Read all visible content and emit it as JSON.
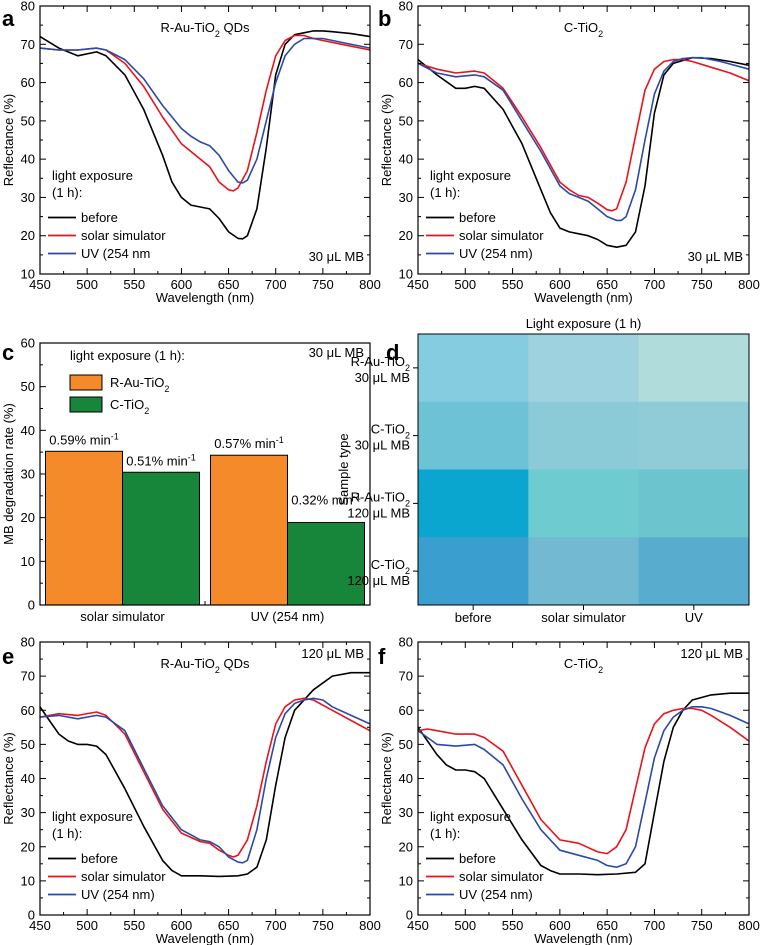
{
  "figure": {
    "panel_letters": [
      "a",
      "b",
      "c",
      "d",
      "e",
      "f"
    ],
    "micro_symbol": "μ"
  },
  "colors": {
    "before": "#000000",
    "solar": "#e8141c",
    "uv": "#2a4aa8",
    "bar_r_au": "#f58a2a",
    "bar_c_tio2": "#17863a",
    "heat": [
      [
        "#86cce0",
        "#9dd2de",
        "#b0dcdc"
      ],
      [
        "#6ec2d6",
        "#8bcbd8",
        "#8fccd8"
      ],
      [
        "#0aa6d0",
        "#6ecbcf",
        "#6cc4cf"
      ],
      [
        "#3a9fcf",
        "#72b9d1",
        "#58acce"
      ]
    ]
  },
  "chart_data": [
    {
      "panel": "a",
      "type": "line",
      "title": "R-Au-TiO2 QDs",
      "title_parts": {
        "main": "R-Au-TiO",
        "sub": "2",
        "rest": " QDs"
      },
      "annotation": "30 μL MB",
      "xlabel": "Wavelength (nm)",
      "ylabel": "Reflectance (%)",
      "xlim": [
        450,
        800
      ],
      "ylim": [
        10,
        80
      ],
      "xticks": [
        450,
        500,
        550,
        600,
        650,
        700,
        750,
        800
      ],
      "yticks": [
        10,
        20,
        30,
        40,
        50,
        60,
        70,
        80
      ],
      "legend_title": [
        "light exposure",
        "(1 h):"
      ],
      "legend_items": [
        "before",
        "solar simulator",
        "UV (254 nm"
      ],
      "series": [
        {
          "name": "before",
          "color_key": "before",
          "x": [
            450,
            470,
            490,
            510,
            520,
            540,
            560,
            580,
            590,
            600,
            610,
            620,
            630,
            640,
            650,
            660,
            665,
            670,
            680,
            690,
            700,
            710,
            720,
            730,
            740,
            750,
            760,
            780,
            800
          ],
          "y": [
            72,
            69,
            67,
            68,
            67,
            62,
            53,
            41,
            34,
            30,
            28,
            27.5,
            27,
            24.5,
            21,
            19.3,
            19.2,
            20,
            27,
            43,
            62,
            70,
            72.5,
            73,
            73.5,
            73.5,
            73.3,
            72.8,
            72
          ]
        },
        {
          "name": "solar simulator",
          "color_key": "solar",
          "x": [
            450,
            470,
            490,
            510,
            520,
            540,
            560,
            580,
            600,
            610,
            620,
            630,
            640,
            650,
            655,
            660,
            670,
            680,
            690,
            700,
            710,
            720,
            730,
            740,
            750,
            770,
            800
          ],
          "y": [
            69,
            68.5,
            68.5,
            69,
            68.5,
            65,
            59,
            51,
            44,
            42,
            40,
            38,
            34,
            32,
            31.7,
            32.5,
            37,
            47,
            58,
            67,
            71,
            72.3,
            72.3,
            71.5,
            71,
            70,
            68.5
          ]
        },
        {
          "name": "UV (254 nm",
          "color_key": "uv",
          "x": [
            450,
            470,
            490,
            510,
            520,
            540,
            560,
            580,
            600,
            610,
            620,
            630,
            640,
            650,
            660,
            665,
            670,
            680,
            690,
            700,
            710,
            720,
            730,
            740,
            750,
            770,
            800
          ],
          "y": [
            69,
            68.5,
            68.5,
            69,
            68.5,
            66,
            61,
            54,
            48,
            46,
            44.5,
            43.5,
            41,
            37,
            34,
            33.8,
            34.5,
            40,
            50,
            60,
            67,
            70,
            71.5,
            71.5,
            71.5,
            70.5,
            69
          ]
        }
      ]
    },
    {
      "panel": "b",
      "type": "line",
      "title": "C-TiO2",
      "title_parts": {
        "main": "C-TiO",
        "sub": "2",
        "rest": ""
      },
      "annotation": "30 μL MB",
      "xlabel": "Wavelength (nm)",
      "ylabel": "Reflectance (%)",
      "xlim": [
        450,
        800
      ],
      "ylim": [
        10,
        80
      ],
      "xticks": [
        450,
        500,
        550,
        600,
        650,
        700,
        750,
        800
      ],
      "yticks": [
        10,
        20,
        30,
        40,
        50,
        60,
        70,
        80
      ],
      "legend_title": [
        "light exposure",
        "(1 h):"
      ],
      "legend_items": [
        "before",
        "solar simulator",
        "UV (254 nm)"
      ],
      "series": [
        {
          "name": "before",
          "color_key": "before",
          "x": [
            450,
            460,
            470,
            490,
            500,
            510,
            520,
            540,
            560,
            580,
            590,
            600,
            610,
            620,
            630,
            640,
            650,
            660,
            670,
            680,
            690,
            700,
            710,
            720,
            740,
            760,
            780,
            800
          ],
          "y": [
            66,
            64,
            62,
            58.5,
            58.5,
            59,
            58.5,
            53,
            44,
            32,
            26,
            22,
            21,
            20.5,
            20,
            19,
            17.5,
            17,
            17.5,
            21,
            33,
            52,
            62,
            65,
            66.5,
            66.3,
            65.5,
            64.5
          ]
        },
        {
          "name": "solar simulator",
          "color_key": "solar",
          "x": [
            450,
            470,
            490,
            510,
            520,
            540,
            560,
            580,
            600,
            610,
            620,
            630,
            640,
            650,
            655,
            660,
            670,
            680,
            690,
            700,
            710,
            720,
            730,
            740,
            760,
            780,
            800
          ],
          "y": [
            65,
            63.5,
            62.5,
            63,
            62.5,
            58.5,
            51,
            43,
            34,
            32,
            30.5,
            30,
            28.5,
            26.8,
            26.5,
            27,
            34,
            46,
            58,
            63.5,
            65.5,
            66,
            66,
            65.5,
            64,
            62.5,
            60.5
          ]
        },
        {
          "name": "UV (254 nm)",
          "color_key": "uv",
          "x": [
            450,
            470,
            490,
            510,
            520,
            540,
            560,
            580,
            600,
            610,
            620,
            630,
            640,
            650,
            660,
            665,
            670,
            680,
            690,
            700,
            710,
            720,
            730,
            740,
            750,
            770,
            800
          ],
          "y": [
            65,
            62.5,
            61.5,
            62,
            61.5,
            58,
            50,
            42,
            33,
            31,
            30,
            29,
            27,
            25,
            24,
            24,
            25,
            32,
            45,
            57,
            63,
            65.5,
            66.3,
            66.5,
            66.5,
            65.5,
            63.5
          ]
        }
      ]
    },
    {
      "panel": "c",
      "type": "bar",
      "title": "light exposure (1 h):",
      "annotation": "30 μL MB",
      "xlabel": "",
      "ylabel": "MB degradation rate (%)",
      "ylim": [
        0,
        60
      ],
      "yticks": [
        0,
        10,
        20,
        30,
        40,
        50,
        60
      ],
      "categories": [
        "solar simulator",
        "UV (254 nm)"
      ],
      "legend_items": [
        {
          "main": "R-Au-TiO",
          "sub": "2"
        },
        {
          "main": "C-TiO",
          "sub": "2"
        }
      ],
      "series": [
        {
          "name": "R-Au-TiO2",
          "color_key": "bar_r_au",
          "values": [
            35.2,
            34.3
          ],
          "labels": [
            "0.59% min",
            "0.57% min"
          ]
        },
        {
          "name": "C-TiO2",
          "color_key": "bar_c_tio2",
          "values": [
            30.4,
            18.9
          ],
          "labels": [
            "0.51% min",
            "0.32% min"
          ]
        }
      ],
      "label_superscript": "-1"
    },
    {
      "panel": "d",
      "type": "heatmap",
      "title": "Light exposure (1 h)",
      "ylabel": "Sample type",
      "columns": [
        "before",
        "solar simulator",
        "UV"
      ],
      "rows": [
        {
          "line1_main": "R-Au-TiO",
          "line1_sub": "2",
          "line2": "30 μL MB"
        },
        {
          "line1_main": "C-TiO",
          "line1_sub": "2",
          "line2": "30 μL MB"
        },
        {
          "line1_main": "R-Au-TiO",
          "line1_sub": "2",
          "line2": "120 μL MB"
        },
        {
          "line1_main": "C-TiO",
          "line1_sub": "2",
          "line2": "120 μL MB"
        }
      ]
    },
    {
      "panel": "e",
      "type": "line",
      "title": "R-Au-TiO2 QDs",
      "title_parts": {
        "main": "R-Au-TiO",
        "sub": "2",
        "rest": " QDs"
      },
      "annotation": "120 μL MB",
      "xlabel": "Wavelength (nm)",
      "ylabel": "Reflectance (%)",
      "xlim": [
        450,
        800
      ],
      "ylim": [
        0,
        80
      ],
      "xticks": [
        450,
        500,
        550,
        600,
        650,
        700,
        750,
        800
      ],
      "yticks": [
        0,
        10,
        20,
        30,
        40,
        50,
        60,
        70,
        80
      ],
      "legend_title": [
        "light exposure",
        "(1 h):"
      ],
      "legend_items": [
        "before",
        "solar simulator",
        "UV (254 nm)"
      ],
      "series": [
        {
          "name": "before",
          "color_key": "before",
          "x": [
            450,
            460,
            470,
            480,
            490,
            500,
            510,
            520,
            540,
            560,
            580,
            590,
            600,
            620,
            640,
            660,
            670,
            680,
            690,
            700,
            710,
            720,
            740,
            760,
            780,
            800
          ],
          "y": [
            61,
            57,
            53,
            51,
            50,
            50,
            49.5,
            47,
            37,
            26,
            16,
            13,
            11.5,
            11.5,
            11.3,
            11.5,
            12,
            14,
            22,
            38,
            52,
            60,
            66,
            70,
            71,
            71
          ]
        },
        {
          "name": "solar simulator",
          "color_key": "solar",
          "x": [
            450,
            470,
            490,
            510,
            520,
            540,
            560,
            580,
            600,
            620,
            630,
            640,
            650,
            655,
            660,
            670,
            680,
            690,
            700,
            710,
            720,
            730,
            740,
            760,
            780,
            800
          ],
          "y": [
            58,
            59,
            58.5,
            59.5,
            58.5,
            53,
            42,
            31,
            24,
            21.5,
            21,
            19,
            17.5,
            17,
            17.5,
            22,
            32,
            45,
            56,
            61,
            63,
            63.5,
            63,
            60,
            57,
            54
          ]
        },
        {
          "name": "UV (254 nm)",
          "color_key": "uv",
          "x": [
            450,
            470,
            490,
            510,
            520,
            540,
            560,
            580,
            600,
            620,
            630,
            640,
            650,
            660,
            665,
            670,
            680,
            690,
            700,
            710,
            720,
            730,
            740,
            750,
            760,
            780,
            800
          ],
          "y": [
            58,
            58.5,
            57.5,
            58.5,
            58,
            54,
            43,
            32,
            25,
            22,
            21.5,
            20,
            17,
            15.5,
            15.3,
            16,
            25,
            40,
            52,
            59,
            62,
            63,
            63.5,
            63,
            61,
            58.5,
            56
          ]
        }
      ]
    },
    {
      "panel": "f",
      "type": "line",
      "title": "C-TiO2",
      "title_parts": {
        "main": "C-TiO",
        "sub": "2",
        "rest": ""
      },
      "annotation": "120 μL MB",
      "xlabel": "Wavelength (nm)",
      "ylabel": "Reflectance (%)",
      "xlim": [
        450,
        800
      ],
      "ylim": [
        0,
        80
      ],
      "xticks": [
        450,
        500,
        550,
        600,
        650,
        700,
        750,
        800
      ],
      "yticks": [
        0,
        10,
        20,
        30,
        40,
        50,
        60,
        70,
        80
      ],
      "legend_title": [
        "light exposure",
        "(1 h):"
      ],
      "legend_items": [
        "before",
        "solar simulator",
        "UV (254 nm)"
      ],
      "series": [
        {
          "name": "before",
          "color_key": "before",
          "x": [
            450,
            460,
            470,
            480,
            490,
            500,
            510,
            520,
            540,
            560,
            580,
            590,
            600,
            620,
            640,
            660,
            680,
            690,
            700,
            710,
            720,
            730,
            740,
            760,
            780,
            800
          ],
          "y": [
            55,
            51,
            47,
            44,
            42.5,
            42.5,
            42,
            40,
            31,
            22,
            14.5,
            13,
            12,
            12,
            11.8,
            12,
            12.5,
            15,
            30,
            45,
            55,
            60,
            63,
            64.5,
            65,
            65
          ]
        },
        {
          "name": "solar simulator",
          "color_key": "solar",
          "x": [
            450,
            460,
            470,
            490,
            510,
            520,
            540,
            560,
            580,
            600,
            620,
            640,
            650,
            660,
            670,
            680,
            690,
            700,
            710,
            720,
            730,
            740,
            750,
            760,
            780,
            800
          ],
          "y": [
            54,
            54.5,
            54,
            53,
            53,
            52,
            48,
            38,
            28,
            22,
            21,
            18.5,
            18,
            20,
            25,
            37,
            49,
            56,
            59,
            60,
            60.5,
            60.5,
            60,
            58.5,
            55,
            51
          ]
        },
        {
          "name": "UV (254 nm)",
          "color_key": "uv",
          "x": [
            450,
            460,
            470,
            490,
            510,
            520,
            540,
            560,
            580,
            600,
            620,
            640,
            650,
            660,
            670,
            680,
            690,
            700,
            710,
            720,
            730,
            740,
            750,
            760,
            780,
            800
          ],
          "y": [
            54,
            52,
            50,
            49.5,
            50,
            48.5,
            44,
            34,
            25,
            19,
            17.5,
            16,
            14.5,
            14,
            15,
            20,
            33,
            46,
            54,
            58,
            60,
            61,
            61,
            60.5,
            58.5,
            56
          ]
        }
      ]
    }
  ]
}
